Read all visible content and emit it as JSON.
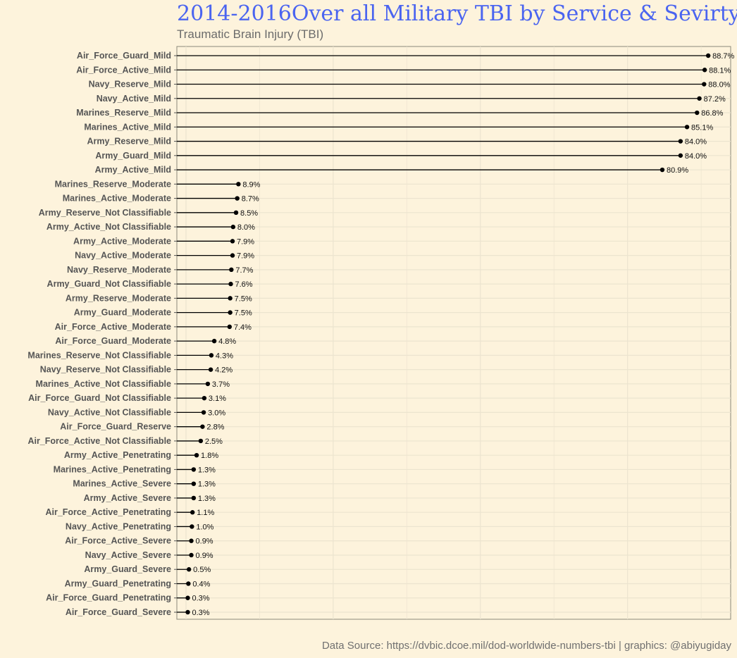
{
  "header": {
    "title": "2014-2016Over all Military TBI by Service & Sevirty",
    "subtitle": "Traumatic Brain Injury (TBI)"
  },
  "footer": {
    "caption": "Data Source: https://dvbic.dcoe.mil/dod-worldwide-numbers-tbi | graphics: @abiyugiday"
  },
  "colors": {
    "background": "#fdf3dc",
    "title": "#4a64f0",
    "marks": "#000000",
    "grid": "#ece4cf",
    "axis_text": "#555555"
  },
  "chart_data": {
    "type": "lollipop",
    "orientation": "horizontal",
    "title": "2014-2016Over all Military TBI by Service & Sevirty",
    "subtitle": "Traumatic Brain Injury (TBI)",
    "xlabel": "",
    "ylabel": "",
    "grid": true,
    "value_labels": "percent",
    "categories": [
      "Air_Force_Guard_Mild",
      "Air_Force_Active_Mild",
      "Navy_Reserve_Mild",
      "Navy_Active_Mild",
      "Marines_Reserve_Mild",
      "Marines_Active_Mild",
      "Army_Reserve_Mild",
      "Army_Guard_Mild",
      "Army_Active_Mild",
      "Marines_Reserve_Moderate",
      "Marines_Active_Moderate",
      "Army_Reserve_Not Classifiable",
      "Army_Active_Not Classifiable",
      "Army_Active_Moderate",
      "Navy_Active_Moderate",
      "Navy_Reserve_Moderate",
      "Army_Guard_Not Classifiable",
      "Army_Reserve_Moderate",
      "Army_Guard_Moderate",
      "Air_Force_Active_Moderate",
      "Air_Force_Guard_Moderate",
      "Marines_Reserve_Not Classifiable",
      "Navy_Reserve_Not Classifiable",
      "Marines_Active_Not Classifiable",
      "Air_Force_Guard_Not Classifiable",
      "Navy_Active_Not Classifiable",
      "Air_Force_Guard_Reserve",
      "Air_Force_Active_Not Classifiable",
      "Army_Active_Penetrating",
      "Marines_Active_Penetrating",
      "Marines_Active_Severe",
      "Army_Active_Severe",
      "Air_Force_Active_Penetrating",
      "Navy_Active_Penetrating",
      "Air_Force_Active_Severe",
      "Navy_Active_Severe",
      "Army_Guard_Severe",
      "Army_Guard_Penetrating",
      "Air_Force_Guard_Penetrating",
      "Air_Force_Guard_Severe"
    ],
    "values": [
      88.7,
      88.1,
      88.0,
      87.2,
      86.8,
      85.1,
      84.0,
      84.0,
      80.9,
      8.9,
      8.7,
      8.5,
      8.0,
      7.9,
      7.9,
      7.7,
      7.6,
      7.5,
      7.5,
      7.4,
      4.8,
      4.3,
      4.2,
      3.7,
      3.1,
      3.0,
      2.8,
      2.5,
      1.8,
      1.3,
      1.3,
      1.3,
      1.1,
      1.0,
      0.9,
      0.9,
      0.5,
      0.4,
      0.3,
      0.3
    ],
    "labels": [
      "88.7%",
      "88.1%",
      "88.0%",
      "87.2%",
      "86.8%",
      "85.1%",
      "84.0%",
      "84.0%",
      "80.9%",
      "8.9%",
      "8.7%",
      "8.5%",
      "8.0%",
      "7.9%",
      "7.9%",
      "7.7%",
      "7.6%",
      "7.5%",
      "7.5%",
      "7.4%",
      "4.8%",
      "4.3%",
      "4.2%",
      "3.7%",
      "3.1%",
      "3.0%",
      "2.8%",
      "2.5%",
      "1.8%",
      "1.3%",
      "1.3%",
      "1.3%",
      "1.1%",
      "1.0%",
      "0.9%",
      "0.9%",
      "0.5%",
      "0.4%",
      "0.3%",
      "0.3%"
    ]
  }
}
